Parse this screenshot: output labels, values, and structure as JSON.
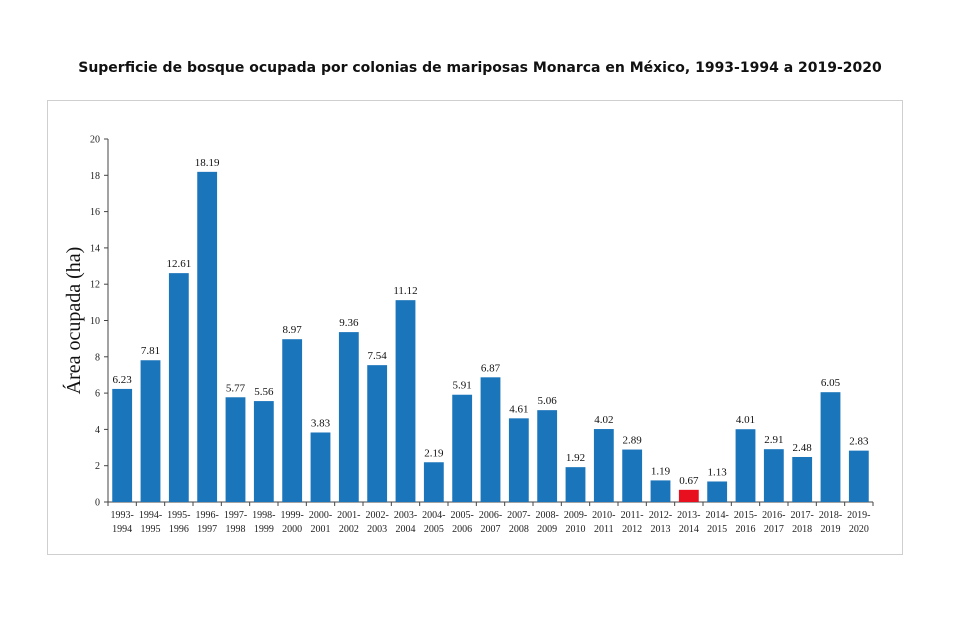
{
  "chart_data": {
    "type": "bar",
    "title": "Superficie de bosque ocupada por colonias de mariposas Monarca en México, 1993-1994 a 2019-2020",
    "xlabel": "",
    "ylabel": "Área ocupada (ha)",
    "ylim": [
      0,
      20
    ],
    "yticks": [
      "0",
      "2",
      "4",
      "6",
      "8",
      "10",
      "12",
      "14",
      "16",
      "18",
      "20"
    ],
    "grid": false,
    "legend": "none",
    "colors": {
      "bar": "#1b75bb",
      "highlight": "#e8101e"
    },
    "highlight_index": 20,
    "categories": [
      [
        "1993-",
        "1994"
      ],
      [
        "1994-",
        "1995"
      ],
      [
        "1995-",
        "1996"
      ],
      [
        "1996-",
        "1997"
      ],
      [
        "1997-",
        "1998"
      ],
      [
        "1998-",
        "1999"
      ],
      [
        "1999-",
        "2000"
      ],
      [
        "2000-",
        "2001"
      ],
      [
        "2001-",
        "2002"
      ],
      [
        "2002-",
        "2003"
      ],
      [
        "2003-",
        "2004"
      ],
      [
        "2004-",
        "2005"
      ],
      [
        "2005-",
        "2006"
      ],
      [
        "2006-",
        "2007"
      ],
      [
        "2007-",
        "2008"
      ],
      [
        "2008-",
        "2009"
      ],
      [
        "2009-",
        "2010"
      ],
      [
        "2010-",
        "2011"
      ],
      [
        "2011-",
        "2012"
      ],
      [
        "2012-",
        "2013"
      ],
      [
        "2013-",
        "2014"
      ],
      [
        "2014-",
        "2015"
      ],
      [
        "2015-",
        "2016"
      ],
      [
        "2016-",
        "2017"
      ],
      [
        "2017-",
        "2018"
      ],
      [
        "2018-",
        "2019"
      ],
      [
        "2019-",
        "2020"
      ]
    ],
    "values": [
      6.23,
      7.81,
      12.61,
      18.19,
      5.77,
      5.56,
      8.97,
      3.83,
      9.36,
      7.54,
      11.12,
      2.19,
      5.91,
      6.87,
      4.61,
      5.06,
      1.92,
      4.02,
      2.89,
      1.19,
      0.67,
      1.13,
      4.01,
      2.91,
      2.48,
      6.05,
      2.83
    ],
    "value_labels": [
      "6.23",
      "7.81",
      "12.61",
      "18.19",
      "5.77",
      "5.56",
      "8.97",
      "3.83",
      "9.36",
      "7.54",
      "11.12",
      "2.19",
      "5.91",
      "6.87",
      "4.61",
      "5.06",
      "1.92",
      "4.02",
      "2.89",
      "1.19",
      "0.67",
      "1.13",
      "4.01",
      "2.91",
      "2.48",
      "6.05",
      "2.83"
    ]
  }
}
